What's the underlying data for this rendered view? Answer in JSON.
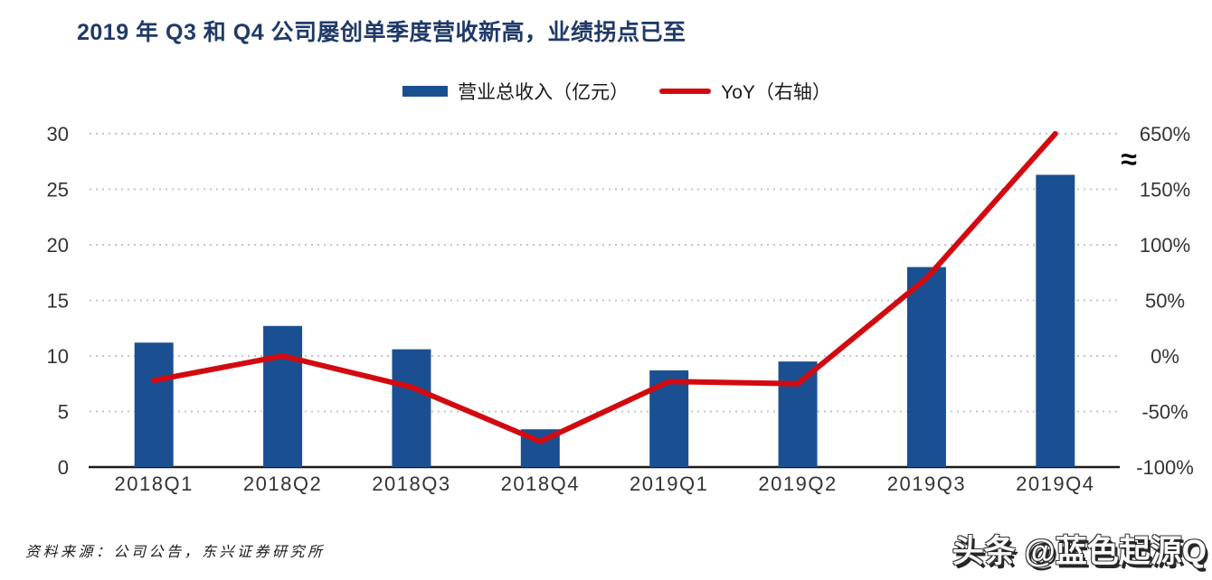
{
  "title": "2019 年 Q3 和 Q4 公司屡创单季度营收新高，业绩拐点已至",
  "footer": {
    "source": "资料来源：公司公告，东兴证券研究所",
    "watermark": "头条 @蓝色起源Q"
  },
  "colors": {
    "title": "#1f3a68",
    "bar": "#1a5091",
    "line": "#d20a10",
    "gridline": "#c4c4c4",
    "axis": "#1a1a1a"
  },
  "chart_data": {
    "type": "bar",
    "subtype": "bar+line combo, dual axis",
    "categories": [
      "2018Q1",
      "2018Q2",
      "2018Q3",
      "2018Q4",
      "2019Q1",
      "2019Q2",
      "2019Q3",
      "2019Q4"
    ],
    "series": [
      {
        "name": "营业总收入（亿元）",
        "type": "bar",
        "axis": "left",
        "color": "#1a5091",
        "values": [
          11.2,
          12.7,
          10.6,
          3.4,
          8.7,
          9.5,
          18.0,
          26.3
        ]
      },
      {
        "name": "YoY（右轴）",
        "type": "line",
        "axis": "right",
        "color": "#d20a10",
        "values": [
          -22,
          0,
          -28,
          -77,
          -23,
          -25,
          70,
          650
        ]
      }
    ],
    "left_axis": {
      "range": [
        0,
        30
      ],
      "ticks": [
        30,
        25,
        20,
        15,
        10,
        5,
        0
      ]
    },
    "right_axis": {
      "tick_labels": [
        "650%",
        "150%",
        "100%",
        "50%",
        "0%",
        "-50%",
        "-100%"
      ],
      "tick_values": [
        650,
        150,
        100,
        50,
        0,
        -50,
        -100
      ],
      "break_symbol": "≈",
      "break_between": [
        150,
        650
      ]
    },
    "grid": "horizontal dotted",
    "legend_position": "top-center"
  }
}
